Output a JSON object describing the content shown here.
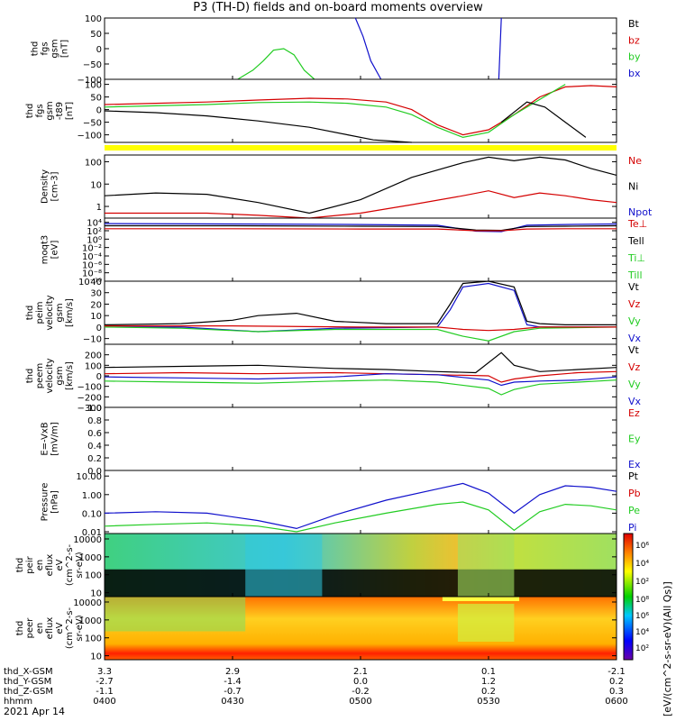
{
  "title": "P3 (TH-D) fields and on-board moments overview",
  "date_label": "2021 Apr 14",
  "chart_data": [
    {
      "type": "line",
      "ylabel": [
        "thd",
        "fgs",
        "gsm",
        "[nT]"
      ],
      "ylim": [
        -100,
        100
      ],
      "yticks": [
        {
          "v": 100,
          "t": "100"
        },
        {
          "v": 50,
          "t": "50"
        },
        {
          "v": 0,
          "t": "0"
        },
        {
          "v": -50,
          "t": "−50"
        },
        {
          "v": -100,
          "t": "−100"
        }
      ],
      "legend": [
        {
          "t": "Bt",
          "c": "#000000"
        },
        {
          "t": "bz",
          "c": "#d40000"
        },
        {
          "t": "by",
          "c": "#22cc22"
        },
        {
          "t": "bx",
          "c": "#1010cc"
        }
      ],
      "series": [
        {
          "name": "by",
          "color": "#22cc22",
          "x": [
            0.52,
            0.58,
            0.62,
            0.66,
            0.7,
            0.74,
            0.78,
            0.82
          ],
          "y": [
            -100,
            -70,
            -40,
            -5,
            0,
            -20,
            -70,
            -100
          ]
        },
        {
          "name": "bx",
          "color": "#1010cc",
          "x": [
            0.98,
            1.01,
            1.04,
            1.08
          ],
          "y": [
            100,
            40,
            -40,
            -100
          ]
        },
        {
          "name": "bx",
          "color": "#1010cc",
          "x": [
            1.54,
            1.545,
            1.55
          ],
          "y": [
            -100,
            0,
            100
          ]
        }
      ]
    },
    {
      "type": "line",
      "ylabel": [
        "thd",
        "fgs",
        "gsm",
        "-t89",
        "[nT]"
      ],
      "ylim": [
        -130,
        120
      ],
      "yticks": [
        {
          "v": 100,
          "t": "100"
        },
        {
          "v": 50,
          "t": "50"
        },
        {
          "v": 0,
          "t": "0"
        },
        {
          "v": -50,
          "t": "−50"
        },
        {
          "v": -100,
          "t": "−100"
        }
      ],
      "series": [
        {
          "name": "bz",
          "color": "#d40000",
          "x": [
            0,
            0.2,
            0.4,
            0.6,
            0.8,
            0.95,
            1.1,
            1.2,
            1.3,
            1.4,
            1.5,
            1.6,
            1.7,
            1.8,
            1.9,
            2.0
          ],
          "y": [
            20,
            25,
            30,
            38,
            45,
            42,
            30,
            0,
            -60,
            -100,
            -80,
            -20,
            50,
            90,
            95,
            90
          ]
        },
        {
          "name": "by",
          "color": "#22cc22",
          "x": [
            0,
            0.2,
            0.4,
            0.6,
            0.8,
            0.95,
            1.1,
            1.2,
            1.3,
            1.4,
            1.5,
            1.6,
            1.7,
            1.8
          ],
          "y": [
            10,
            15,
            20,
            28,
            30,
            25,
            10,
            -20,
            -70,
            -110,
            -90,
            -20,
            40,
            100
          ]
        },
        {
          "name": "Bt",
          "color": "#000000",
          "x": [
            0,
            0.2,
            0.4,
            0.6,
            0.8,
            0.95,
            1.05,
            1.2
          ],
          "y": [
            -5,
            -12,
            -25,
            -45,
            -70,
            -100,
            -120,
            -130
          ]
        },
        {
          "name": "Bt",
          "color": "#000000",
          "x": [
            1.55,
            1.65,
            1.72,
            1.8,
            1.88
          ],
          "y": [
            -50,
            30,
            10,
            -50,
            -110
          ]
        }
      ]
    },
    {
      "type": "line",
      "ylabel": [
        "Density",
        "[cm-3]"
      ],
      "scale": "log",
      "ylim": [
        0.3,
        200
      ],
      "yticks": [
        {
          "v": 100,
          "t": "100"
        },
        {
          "v": 10,
          "t": "10"
        },
        {
          "v": 1,
          "t": "1"
        }
      ],
      "legend": [
        {
          "t": "Ne",
          "c": "#d40000"
        },
        {
          "t": "Ni",
          "c": "#000000"
        },
        {
          "t": "Npot",
          "c": "#1010cc"
        }
      ],
      "series": [
        {
          "name": "Ni",
          "color": "#000000",
          "x": [
            0,
            0.2,
            0.4,
            0.6,
            0.8,
            1.0,
            1.2,
            1.4,
            1.5,
            1.6,
            1.7,
            1.8,
            1.9,
            2.0
          ],
          "y": [
            3,
            4,
            3.5,
            1.5,
            0.5,
            2,
            20,
            90,
            160,
            110,
            160,
            120,
            50,
            25
          ]
        },
        {
          "name": "Ne",
          "color": "#d40000",
          "x": [
            0,
            0.2,
            0.4,
            0.6,
            0.8,
            1.0,
            1.2,
            1.4,
            1.5,
            1.6,
            1.7,
            1.8,
            1.9,
            2.0
          ],
          "y": [
            0.5,
            0.5,
            0.5,
            0.4,
            0.3,
            0.5,
            1.2,
            3,
            5,
            2.5,
            4,
            3,
            2,
            1.5
          ]
        }
      ]
    },
    {
      "type": "line",
      "ylabel": [
        "moqt3",
        "[eV]"
      ],
      "scale": "log",
      "ylim": [
        1e-10,
        100000.0
      ],
      "yticks": [
        {
          "v": 10000.0,
          "t": "10⁴"
        },
        {
          "v": 100,
          "t": "10²"
        },
        {
          "v": 1,
          "t": "10⁰"
        },
        {
          "v": 0.01,
          "t": "10⁻²"
        },
        {
          "v": 0.0001,
          "t": "10⁻⁴"
        },
        {
          "v": 1e-06,
          "t": "10⁻⁶"
        },
        {
          "v": 1e-08,
          "t": "10⁻⁸"
        },
        {
          "v": 1e-10,
          "t": "10⁻¹⁰"
        }
      ],
      "legend": [
        {
          "t": "Te⊥",
          "c": "#d40000"
        },
        {
          "t": "Tell",
          "c": "#000000"
        },
        {
          "t": "Ti⊥",
          "c": "#22cc22"
        },
        {
          "t": "Till",
          "c": "#22cc22"
        }
      ],
      "series": [
        {
          "name": "Ti⊥",
          "color": "#1010cc",
          "x": [
            0,
            0.5,
            1.0,
            1.3,
            1.45,
            1.55,
            1.65,
            1.8,
            2.0
          ],
          "y": [
            5000,
            4000,
            3000,
            2000,
            80,
            60,
            2000,
            3000,
            4000
          ]
        },
        {
          "name": "Tell",
          "color": "#000000",
          "x": [
            0,
            0.5,
            1.0,
            1.3,
            1.45,
            1.55,
            1.65,
            1.8,
            2.0
          ],
          "y": [
            1500,
            1500,
            1200,
            1000,
            150,
            120,
            1000,
            1200,
            1500
          ]
        },
        {
          "name": "Te⊥",
          "color": "#d40000",
          "x": [
            0,
            0.5,
            1.0,
            1.3,
            1.45,
            1.55,
            1.65,
            1.8,
            2.0
          ],
          "y": [
            300,
            300,
            250,
            250,
            100,
            100,
            250,
            300,
            300
          ]
        }
      ]
    },
    {
      "type": "line",
      "ylabel": [
        "thd",
        "peim",
        "velocity",
        "gsm",
        "[km/s]"
      ],
      "ylim": [
        -15,
        40
      ],
      "yticks": [
        {
          "v": 40,
          "t": "40"
        },
        {
          "v": 30,
          "t": "30"
        },
        {
          "v": 20,
          "t": "20"
        },
        {
          "v": 10,
          "t": "10"
        },
        {
          "v": 0,
          "t": "0"
        },
        {
          "v": -10,
          "t": "−10"
        }
      ],
      "legend": [
        {
          "t": "Vt",
          "c": "#000000"
        },
        {
          "t": "Vz",
          "c": "#d40000"
        },
        {
          "t": "Vy",
          "c": "#22cc22"
        },
        {
          "t": "Vx",
          "c": "#1010cc"
        }
      ],
      "series": [
        {
          "name": "Vt",
          "color": "#000000",
          "x": [
            0,
            0.3,
            0.5,
            0.6,
            0.75,
            0.9,
            1.1,
            1.3,
            1.35,
            1.4,
            1.5,
            1.6,
            1.65,
            1.7,
            1.8,
            2.0
          ],
          "y": [
            2,
            3,
            6,
            10,
            12,
            5,
            3,
            3,
            20,
            38,
            40,
            35,
            5,
            3,
            2,
            2
          ]
        },
        {
          "name": "Vx",
          "color": "#1010cc",
          "x": [
            0,
            0.3,
            0.6,
            0.9,
            1.3,
            1.35,
            1.4,
            1.5,
            1.6,
            1.65,
            1.7,
            2.0
          ],
          "y": [
            0,
            0,
            -4,
            -1,
            0,
            15,
            35,
            38,
            32,
            2,
            0,
            0
          ]
        },
        {
          "name": "Vy",
          "color": "#22cc22",
          "x": [
            0,
            0.3,
            0.6,
            0.9,
            1.3,
            1.4,
            1.5,
            1.6,
            1.7,
            2.0
          ],
          "y": [
            0,
            -1,
            -4,
            -2,
            -2,
            -8,
            -12,
            -4,
            -1,
            0
          ]
        },
        {
          "name": "Vz",
          "color": "#d40000",
          "x": [
            0,
            0.5,
            1.0,
            1.3,
            1.4,
            1.5,
            1.6,
            1.7,
            2.0
          ],
          "y": [
            1,
            1,
            0,
            0,
            -2,
            -3,
            -2,
            0,
            0
          ]
        }
      ]
    },
    {
      "type": "line",
      "ylabel": [
        "thd",
        "peem",
        "velocity",
        "gsm",
        "[km/s]"
      ],
      "ylim": [
        -300,
        300
      ],
      "yticks": [
        {
          "v": 200,
          "t": "200"
        },
        {
          "v": 100,
          "t": "100"
        },
        {
          "v": 0,
          "t": "0"
        },
        {
          "v": -100,
          "t": "−100"
        },
        {
          "v": -200,
          "t": "−200"
        },
        {
          "v": -300,
          "t": "−300"
        }
      ],
      "legend": [
        {
          "t": "Vt",
          "c": "#000000"
        },
        {
          "t": "Vz",
          "c": "#d40000"
        },
        {
          "t": "Vy",
          "c": "#22cc22"
        },
        {
          "t": "Vx",
          "c": "#1010cc"
        }
      ],
      "series": [
        {
          "name": "Vt",
          "color": "#000000",
          "x": [
            0,
            0.3,
            0.6,
            0.9,
            1.1,
            1.3,
            1.45,
            1.55,
            1.6,
            1.7,
            1.85,
            2.0
          ],
          "y": [
            80,
            90,
            100,
            70,
            60,
            40,
            30,
            220,
            100,
            40,
            60,
            80
          ]
        },
        {
          "name": "Vz",
          "color": "#d40000",
          "x": [
            0,
            0.3,
            0.6,
            0.9,
            1.1,
            1.3,
            1.5,
            1.55,
            1.6,
            1.7,
            1.85,
            2.0
          ],
          "y": [
            20,
            30,
            20,
            30,
            20,
            10,
            0,
            -60,
            -30,
            0,
            30,
            40
          ]
        },
        {
          "name": "Vx",
          "color": "#1010cc",
          "x": [
            0,
            0.3,
            0.6,
            0.9,
            1.1,
            1.3,
            1.5,
            1.55,
            1.6,
            1.7,
            1.85,
            2.0
          ],
          "y": [
            -10,
            -20,
            -30,
            -10,
            20,
            10,
            -40,
            -90,
            -60,
            -50,
            -40,
            -10
          ]
        },
        {
          "name": "Vy",
          "color": "#22cc22",
          "x": [
            0,
            0.3,
            0.6,
            0.9,
            1.1,
            1.3,
            1.5,
            1.55,
            1.6,
            1.7,
            1.85,
            2.0
          ],
          "y": [
            -50,
            -60,
            -70,
            -50,
            -40,
            -60,
            -120,
            -180,
            -130,
            -80,
            -60,
            -40
          ]
        }
      ]
    },
    {
      "type": "line",
      "ylabel": [
        "E=-VxB",
        "[mV/m]"
      ],
      "ylim": [
        0,
        1
      ],
      "yticks": [
        {
          "v": 1,
          "t": "1.0"
        },
        {
          "v": 0.8,
          "t": "0.8"
        },
        {
          "v": 0.6,
          "t": "0.6"
        },
        {
          "v": 0.4,
          "t": "0.4"
        },
        {
          "v": 0.2,
          "t": "0.2"
        },
        {
          "v": 0,
          "t": "0.0"
        }
      ],
      "legend": [
        {
          "t": "Ez",
          "c": "#d40000"
        },
        {
          "t": "Ey",
          "c": "#22cc22"
        },
        {
          "t": "Ex",
          "c": "#1010cc"
        }
      ],
      "series": []
    },
    {
      "type": "line",
      "ylabel": [
        "Pressure",
        "[nPa]"
      ],
      "scale": "log",
      "ylim": [
        0.008,
        20
      ],
      "yticks": [
        {
          "v": 10,
          "t": "10.00"
        },
        {
          "v": 1,
          "t": "1.00"
        },
        {
          "v": 0.1,
          "t": "0.10"
        },
        {
          "v": 0.01,
          "t": "0.01"
        }
      ],
      "legend": [
        {
          "t": "Pt",
          "c": "#000000"
        },
        {
          "t": "Pb",
          "c": "#d40000"
        },
        {
          "t": "Pe",
          "c": "#22cc22"
        },
        {
          "t": "Pi",
          "c": "#1010cc"
        }
      ],
      "series": [
        {
          "name": "Pi",
          "color": "#1010cc",
          "x": [
            0,
            0.2,
            0.4,
            0.6,
            0.75,
            0.9,
            1.1,
            1.3,
            1.4,
            1.5,
            1.6,
            1.7,
            1.8,
            1.9,
            2.0
          ],
          "y": [
            0.1,
            0.12,
            0.1,
            0.04,
            0.015,
            0.08,
            0.5,
            2,
            4,
            1.2,
            0.1,
            1,
            3,
            2.5,
            1.5
          ]
        },
        {
          "name": "Pe",
          "color": "#22cc22",
          "x": [
            0,
            0.2,
            0.4,
            0.6,
            0.75,
            0.9,
            1.1,
            1.3,
            1.4,
            1.5,
            1.6,
            1.7,
            1.8,
            1.9,
            2.0
          ],
          "y": [
            0.02,
            0.025,
            0.03,
            0.02,
            0.01,
            0.03,
            0.1,
            0.3,
            0.4,
            0.15,
            0.012,
            0.12,
            0.3,
            0.25,
            0.15
          ]
        }
      ]
    },
    {
      "type": "heatmap",
      "ylabel": [
        "thd",
        "peir",
        "en",
        "eflux",
        "eV",
        "(cm^2-s-",
        "sr-eV)"
      ],
      "scale": "log",
      "ylim": [
        6,
        20000
      ],
      "yticks": [
        {
          "v": 10000,
          "t": "10000"
        },
        {
          "v": 1000,
          "t": "1000"
        },
        {
          "v": 100,
          "t": "100"
        },
        {
          "v": 10,
          "t": "10"
        }
      ],
      "colorbar_ticks": [
        "10⁶",
        "10⁴",
        "10²"
      ]
    },
    {
      "type": "heatmap",
      "ylabel": [
        "thd",
        "peer",
        "en",
        "eflux",
        "eV",
        "(cm^2-s-",
        "sr-eV)"
      ],
      "scale": "log",
      "ylim": [
        6,
        20000
      ],
      "yticks": [
        {
          "v": 10000,
          "t": "10000"
        },
        {
          "v": 1000,
          "t": "1000"
        },
        {
          "v": 100,
          "t": "100"
        },
        {
          "v": 10,
          "t": "10"
        }
      ],
      "colorbar_ticks": [
        "10⁸",
        "10⁶",
        "10⁴",
        "10²"
      ]
    }
  ],
  "colorbar_label": "[eV/(cm^2-s-sr-eV)(All Qs)]",
  "xaxis": {
    "rows": [
      "thd_X-GSM",
      "thd_Y-GSM",
      "thd_Z-GSM",
      "hhmm"
    ],
    "ticks": [
      {
        "v": 0,
        "vals": [
          "3.3",
          "-2.7",
          "-1.1",
          "0400"
        ]
      },
      {
        "v": 0.5,
        "vals": [
          "2.9",
          "-1.4",
          "-0.7",
          "0430"
        ]
      },
      {
        "v": 1,
        "vals": [
          "2.1",
          "0.0",
          "-0.2",
          "0500"
        ]
      },
      {
        "v": 1.5,
        "vals": [
          "0.1",
          "1.2",
          "0.2",
          "0530"
        ]
      },
      {
        "v": 2,
        "vals": [
          "-2.1",
          "0.2",
          "0.3",
          "0600"
        ]
      }
    ]
  }
}
